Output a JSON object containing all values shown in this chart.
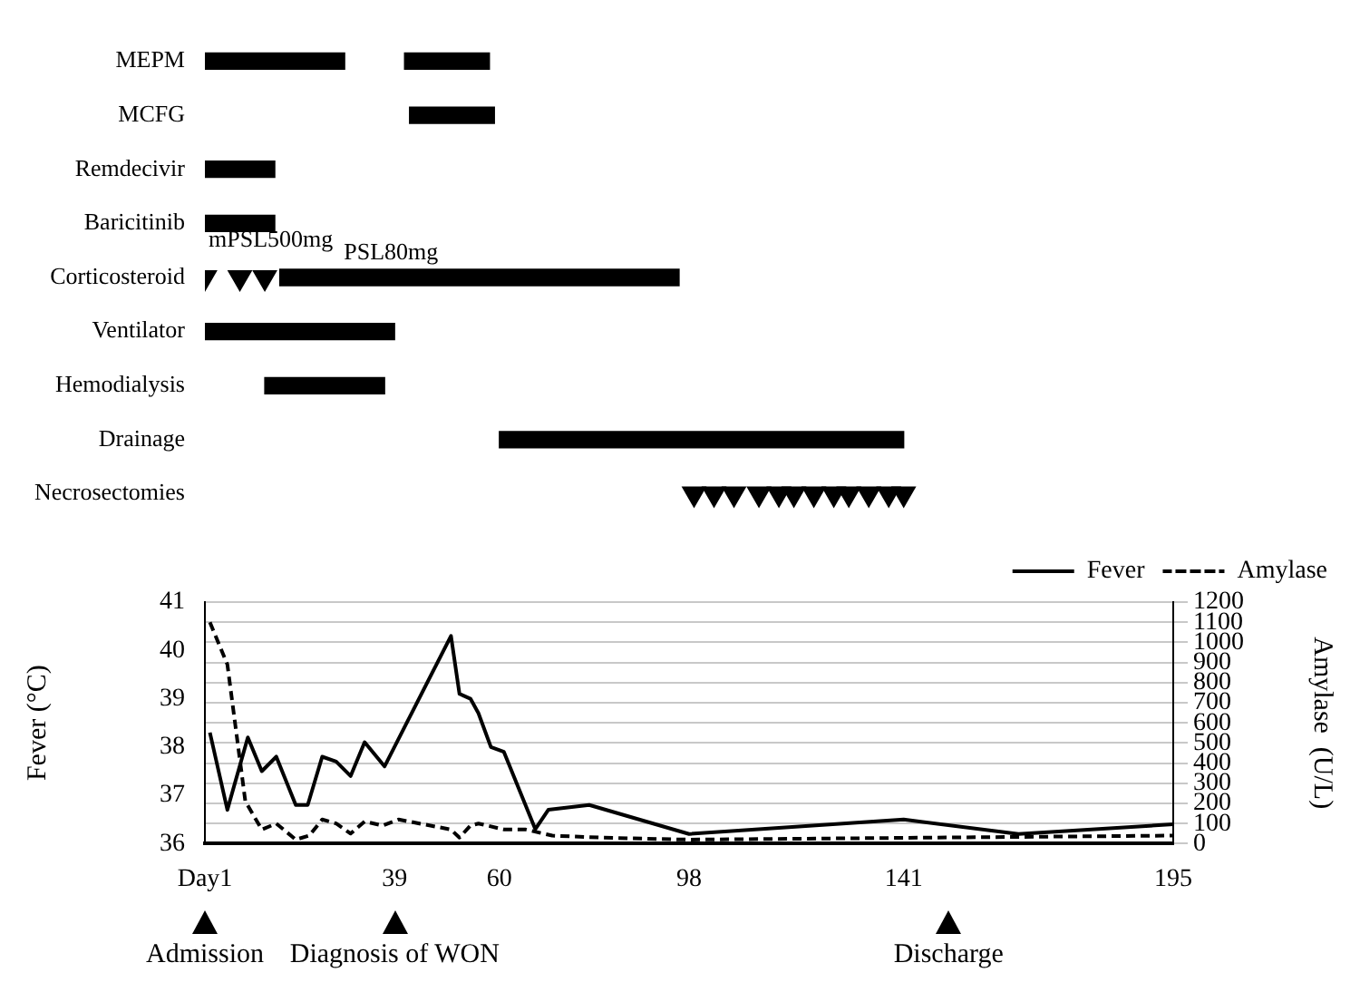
{
  "chart_data": [
    {
      "type": "bar",
      "orientation": "horizontal",
      "categories": [
        "MEPM",
        "MCFG",
        "Remdecivir",
        "Baricitinib",
        "Corticosteroid",
        "Ventilator",
        "Hemodialysis",
        "Drainage",
        "Necrosectomies"
      ],
      "xlim": [
        1,
        195
      ],
      "tick_labels": "y",
      "legend": false,
      "annotations": [
        {
          "text": "mPSL500mg",
          "x": 1,
          "y": "Corticosteroid"
        },
        {
          "text": "PSL80mg",
          "x": 16,
          "y": "Corticosteroid"
        }
      ],
      "series": [
        {
          "color": "#000000",
          "base": [
            1,
            42,
            1,
            1,
            16,
            1,
            13,
            60,
            null
          ],
          "values": [
            28,
            17,
            14,
            14,
            80,
            38,
            24,
            81,
            null
          ]
        },
        {
          "color": "#000000",
          "base": [
            41,
            null,
            null,
            null,
            null,
            null,
            null,
            null,
            null
          ],
          "values": [
            17,
            null,
            null,
            null,
            null,
            null,
            null,
            null,
            null
          ]
        },
        {
          "type": "scatter",
          "color": "#000000",
          "marker": "triangle",
          "x": [
            "Corticosteroid",
            "Corticosteroid",
            "Corticosteroid"
          ],
          "values": [
            1,
            8,
            13
          ]
        },
        {
          "type": "scatter",
          "color": "#000000",
          "marker": "triangle",
          "x": [
            "Necrosectomies",
            "Necrosectomies",
            "Necrosectomies",
            "Necrosectomies",
            "Necrosectomies",
            "Necrosectomies",
            "Necrosectomies",
            "Necrosectomies",
            "Necrosectomies",
            "Necrosectomies",
            "Necrosectomies",
            "Necrosectomies"
          ],
          "values": [
            99,
            103,
            107,
            112,
            116,
            119,
            123,
            127,
            130,
            134,
            138,
            141
          ]
        }
      ]
    },
    {
      "type": "line",
      "ylabel": "Fever (°C)",
      "y2label": "Amylase  (U/L)",
      "xlim": [
        1,
        195
      ],
      "xticks": [
        {
          "value": 1,
          "label": "Day1"
        },
        39,
        60,
        98,
        141,
        195
      ],
      "ylim": [
        36,
        41
      ],
      "yticks": [
        36,
        37,
        38,
        39,
        40,
        41
      ],
      "y2lim": [
        0,
        1200
      ],
      "y2ticks": [
        0,
        100,
        200,
        300,
        400,
        500,
        600,
        700,
        800,
        900,
        1000,
        1100,
        1200
      ],
      "grid": "y",
      "legend": "top right",
      "marker": "none",
      "annotations": [
        "Admission",
        "Diagnosis of WON",
        "Discharge"
      ],
      "series": [
        {
          "name": "Fever",
          "color": "#000000",
          "line_style": "solid",
          "x": [
            2,
            5.5,
            9.6,
            12.4,
            15.3,
            19.2,
            21.6,
            24.5,
            27.3,
            30.2,
            33,
            37,
            50.3,
            52,
            54.2,
            55.8,
            58.3,
            60.9,
            67.2,
            69.8,
            78,
            98,
            141,
            164,
            195
          ],
          "values": [
            38.3,
            36.7,
            38.2,
            37.5,
            37.8,
            36.8,
            36.8,
            37.8,
            37.7,
            37.4,
            38.1,
            37.6,
            40.3,
            39.1,
            39.0,
            38.7,
            38.0,
            37.9,
            36.3,
            36.7,
            36.8,
            36.2,
            36.5,
            36.2,
            36.4
          ]
        },
        {
          "name": "Amylase",
          "color": "#000000",
          "line_style": "dashed",
          "axis": "y2",
          "x": [
            2,
            5.5,
            9.1,
            12.4,
            15.3,
            19.2,
            21.9,
            24.5,
            27.3,
            30.2,
            33,
            36.6,
            39.8,
            50.3,
            52,
            54.2,
            55.8,
            61,
            65.3,
            70.6,
            80.5,
            98,
            195
          ],
          "values": [
            1100,
            890,
            210,
            70,
            100,
            20,
            40,
            120,
            100,
            50,
            110,
            90,
            120,
            70,
            30,
            90,
            100,
            70,
            70,
            40,
            30,
            20,
            40
          ]
        }
      ]
    }
  ]
}
